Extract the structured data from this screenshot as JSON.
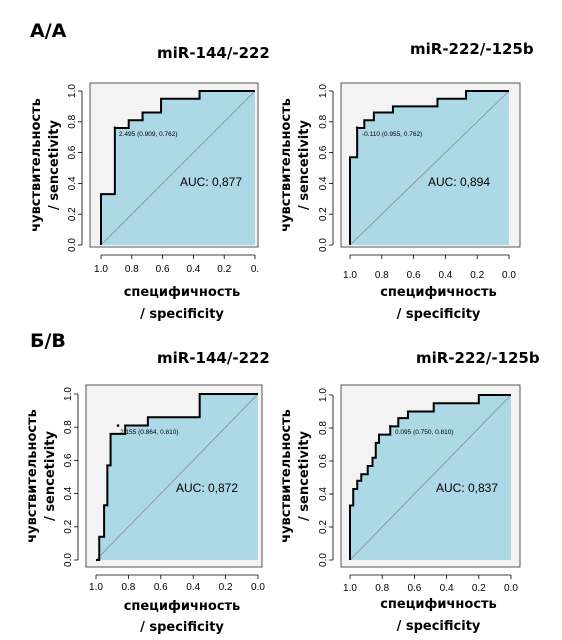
{
  "sections": [
    {
      "label": "А/А"
    },
    {
      "label": "Б/В"
    }
  ],
  "chart_data": [
    {
      "type": "line",
      "title": "miR-144/-222",
      "xlabel_lines": [
        "специфичность",
        "/ specificity"
      ],
      "ylabel_lines": [
        "чувствительность",
        "/ sencetivity"
      ],
      "xlim": [
        1.0,
        0.0
      ],
      "ylim": [
        0.0,
        1.0
      ],
      "xticks": [
        "1.0",
        "0.8",
        "0.6",
        "0.4",
        "0.2",
        "0."
      ],
      "yticks": [
        "0.0",
        "0.2",
        "0.4",
        "0.6",
        "0.8",
        "1.0"
      ],
      "auc_text": "AUC: 0,877",
      "cutoff_text": "2.495 (0.909, 0.762)",
      "cutoff_point": {
        "x": 0.909,
        "y": 0.762
      },
      "series": [
        {
          "x": [
            1.0,
            1.0,
            0.91,
            0.91,
            0.82,
            0.82,
            0.73,
            0.73,
            0.61,
            0.61,
            0.36,
            0.36,
            0.0
          ],
          "y": [
            0.0,
            0.33,
            0.33,
            0.76,
            0.76,
            0.81,
            0.81,
            0.86,
            0.86,
            0.95,
            0.95,
            1.0,
            1.0
          ]
        }
      ]
    },
    {
      "type": "line",
      "title": "miR-222/-125b",
      "xlabel_lines": [
        "специфичность",
        "/ specificity"
      ],
      "ylabel_lines": [
        "чувствительность",
        "/ sencetivity"
      ],
      "xlim": [
        1.0,
        0.0
      ],
      "ylim": [
        0.0,
        1.0
      ],
      "xticks": [
        "1.0",
        "0.8",
        "0.6",
        "0.4",
        "0.2",
        "0.0"
      ],
      "yticks": [
        "0.0",
        "0.2",
        "0.4",
        "0.6",
        "0.8",
        "1.0"
      ],
      "auc_text": "AUC: 0,894",
      "cutoff_text": "-0.110 (0.955, 0.762)",
      "cutoff_point": {
        "x": 0.955,
        "y": 0.762
      },
      "series": [
        {
          "x": [
            1.0,
            1.0,
            0.955,
            0.955,
            0.91,
            0.91,
            0.85,
            0.85,
            0.73,
            0.73,
            0.59,
            0.59,
            0.45,
            0.45,
            0.27,
            0.27,
            0.0
          ],
          "y": [
            0.0,
            0.57,
            0.57,
            0.76,
            0.76,
            0.81,
            0.81,
            0.86,
            0.86,
            0.9,
            0.9,
            0.9,
            0.9,
            0.95,
            0.95,
            1.0,
            1.0
          ]
        }
      ]
    },
    {
      "type": "line",
      "title": "miR-144/-222",
      "xlabel_lines": [
        "специфичность",
        "/ specificity"
      ],
      "ylabel_lines": [
        "чувствительность",
        "/ sencetivity"
      ],
      "xlim": [
        1.0,
        0.0
      ],
      "ylim": [
        0.0,
        1.0
      ],
      "xticks": [
        "1.0",
        "0.8",
        "0.6",
        "0.4",
        "0.2",
        "0.0"
      ],
      "yticks": [
        "0.0",
        "0.2",
        "0.4",
        "0.6",
        "0.8",
        "1.0"
      ],
      "auc_text": "AUC: 0,872",
      "cutoff_text": "2.155 (0.864, 0.810)",
      "cutoff_point": {
        "x": 0.864,
        "y": 0.81
      },
      "series": [
        {
          "x": [
            1.0,
            0.98,
            0.98,
            0.95,
            0.95,
            0.93,
            0.93,
            0.91,
            0.91,
            0.86,
            0.86,
            0.82,
            0.82,
            0.68,
            0.68,
            0.36,
            0.36,
            0.0
          ],
          "y": [
            0.0,
            0.0,
            0.14,
            0.14,
            0.33,
            0.33,
            0.57,
            0.57,
            0.76,
            0.76,
            0.76,
            0.76,
            0.81,
            0.81,
            0.86,
            0.86,
            1.0,
            1.0
          ]
        }
      ]
    },
    {
      "type": "line",
      "title": "miR-222/-125b",
      "xlabel_lines": [
        "специфичность",
        "/ specificity"
      ],
      "ylabel_lines": [
        "чувствительность",
        "/ sencetivity"
      ],
      "xlim": [
        1.0,
        0.0
      ],
      "ylim": [
        0.0,
        1.0
      ],
      "xticks": [
        "1.0",
        "0.8",
        "0.6",
        "0.4",
        "0.2",
        "0.0"
      ],
      "yticks": [
        "0.0",
        "0.2",
        "0.4",
        "0.6",
        "0.8",
        "1.0"
      ],
      "auc_text": "AUC: 0,837",
      "cutoff_text": "0.095 (0.750, 0.810)",
      "cutoff_point": {
        "x": 0.75,
        "y": 0.81
      },
      "series": [
        {
          "x": [
            1.0,
            1.0,
            0.98,
            0.98,
            0.955,
            0.955,
            0.93,
            0.93,
            0.89,
            0.89,
            0.86,
            0.86,
            0.84,
            0.84,
            0.82,
            0.82,
            0.77,
            0.77,
            0.75,
            0.75,
            0.7,
            0.7,
            0.64,
            0.64,
            0.48,
            0.48,
            0.36,
            0.36,
            0.2,
            0.2,
            0.0
          ],
          "y": [
            0.0,
            0.33,
            0.33,
            0.43,
            0.43,
            0.48,
            0.48,
            0.52,
            0.52,
            0.57,
            0.57,
            0.62,
            0.62,
            0.71,
            0.71,
            0.76,
            0.76,
            0.76,
            0.76,
            0.81,
            0.81,
            0.86,
            0.86,
            0.9,
            0.9,
            0.95,
            0.95,
            0.95,
            0.95,
            1.0,
            1.0
          ]
        }
      ]
    }
  ]
}
